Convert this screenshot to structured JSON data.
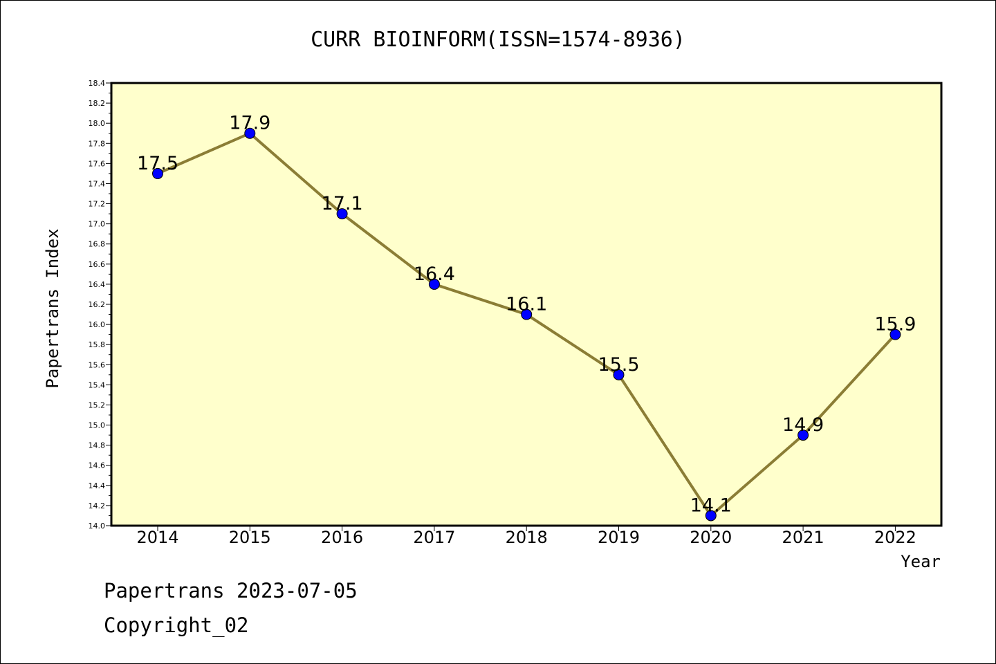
{
  "chart_data": {
    "type": "line",
    "title": "CURR BIOINFORM(ISSN=1574-8936)",
    "xlabel": "Year",
    "ylabel": "Papertrans Index",
    "categories": [
      "2014",
      "2015",
      "2016",
      "2017",
      "2018",
      "2019",
      "2020",
      "2021",
      "2022"
    ],
    "values": [
      17.5,
      17.9,
      17.1,
      16.4,
      16.1,
      15.5,
      14.1,
      14.9,
      15.9
    ],
    "data_labels": [
      "17.5",
      "17.9",
      "17.1",
      "16.4",
      "16.1",
      "15.5",
      "14.1",
      "14.9",
      "15.9"
    ],
    "ylim": [
      14.0,
      18.4
    ],
    "yticks": [
      "14.0",
      "14.2",
      "14.4",
      "14.6",
      "14.8",
      "15.0",
      "15.2",
      "15.4",
      "15.6",
      "15.8",
      "16.0",
      "16.2",
      "16.4",
      "16.6",
      "16.8",
      "17.0",
      "17.2",
      "17.4",
      "17.6",
      "17.8",
      "18.0",
      "18.2",
      "18.4"
    ],
    "grid": false,
    "colors": {
      "plot_background": "#ffffcc",
      "line": "#8b7d35",
      "marker": "#0000ff"
    }
  },
  "footer": {
    "line1": "Papertrans 2023-07-05",
    "line2": "Copyright_02"
  }
}
